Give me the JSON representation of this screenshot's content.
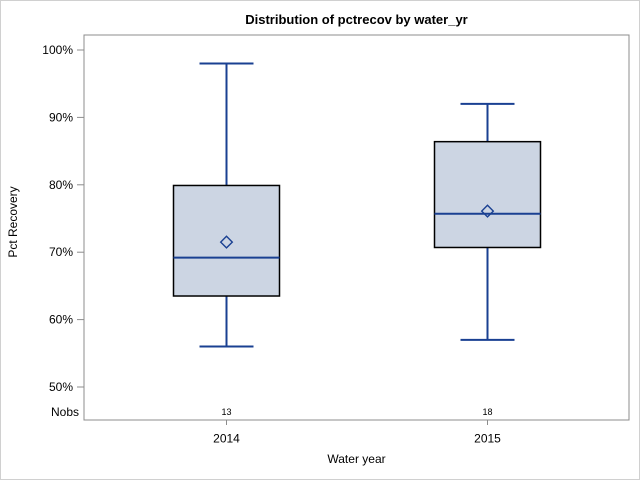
{
  "title": "Distribution of pctrecov by water_yr",
  "y_axis": {
    "label": "Pct Recovery",
    "tick_labels": [
      "100%",
      "90%",
      "80%",
      "70%",
      "60%",
      "50%"
    ]
  },
  "x_axis": {
    "label": "Water year",
    "categories": [
      "2014",
      "2015"
    ]
  },
  "nobs_label": "Nobs",
  "chart_data": {
    "type": "boxplot",
    "title": "Distribution of pctrecov by water_yr",
    "xlabel": "Water year",
    "ylabel": "Pct Recovery",
    "ylim": [
      45,
      102
    ],
    "y_ticks_pct": [
      100,
      90,
      80,
      70,
      60,
      50
    ],
    "grid": false,
    "legend": false,
    "categories": [
      "2014",
      "2015"
    ],
    "series": [
      {
        "category": "2014",
        "nobs": 13,
        "whisker_low": 56,
        "q1": 63.5,
        "median": 69.2,
        "mean": 71.5,
        "q3": 79.9,
        "whisker_high": 98
      },
      {
        "category": "2015",
        "nobs": 18,
        "whisker_low": 57,
        "q1": 70.7,
        "median": 75.7,
        "mean": 76.1,
        "q3": 86.4,
        "whisker_high": 92
      }
    ],
    "colors": {
      "box_fill": "#ccd5e3",
      "box_border": "#000000",
      "line": "#1a4092",
      "wall_border": "#8c8c8c",
      "text": "#000000"
    }
  }
}
